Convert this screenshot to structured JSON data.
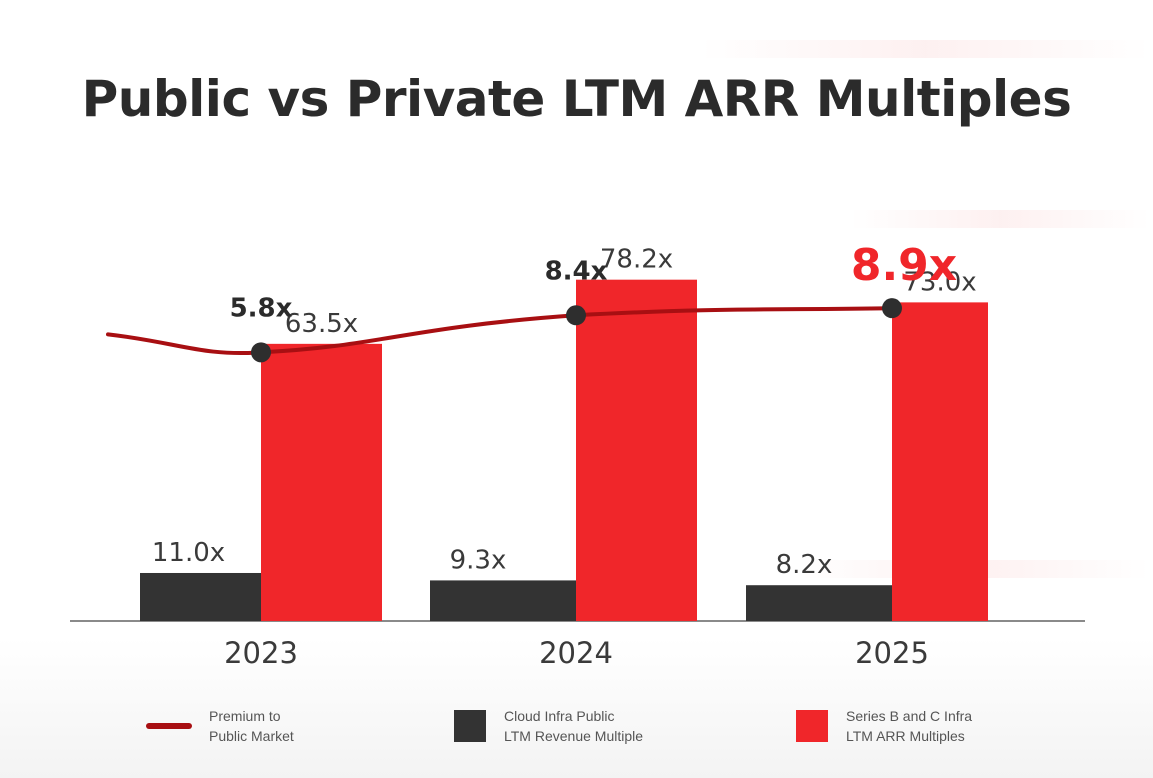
{
  "chart_data": {
    "type": "bar",
    "title": "Public vs Private LTM ARR Multiples",
    "categories": [
      "2023",
      "2024",
      "2025"
    ],
    "series": [
      {
        "name": "Cloud Infra Public LTM Revenue Multiple",
        "values": [
          11.0,
          9.3,
          8.2
        ],
        "labels": [
          "11.0x",
          "9.3x",
          "8.2x"
        ],
        "color": "#333333"
      },
      {
        "name": "Series B and C Infra LTM ARR Multiples",
        "values": [
          63.5,
          78.2,
          73.0
        ],
        "labels": [
          "63.5x",
          "78.2x",
          "73.0x"
        ],
        "color": "#f0262a"
      }
    ],
    "line_series": {
      "name": "Premium to Public Market",
      "type": "line",
      "values": [
        5.8,
        8.4,
        8.9
      ],
      "labels": [
        "5.8x",
        "8.4x",
        "8.9x"
      ],
      "color": "#a80f12",
      "highlight_color": "#f0262a",
      "highlight_index": 2
    },
    "ylim": [
      0,
      85
    ],
    "line_ylim": [
      0,
      20
    ],
    "xlabel": "",
    "ylabel": ""
  },
  "legend": {
    "line": "Premium to\nPublic Market",
    "public": "Cloud Infra Public\nLTM Revenue Multiple",
    "private": "Series B and C Infra\nLTM ARR Multiples"
  }
}
